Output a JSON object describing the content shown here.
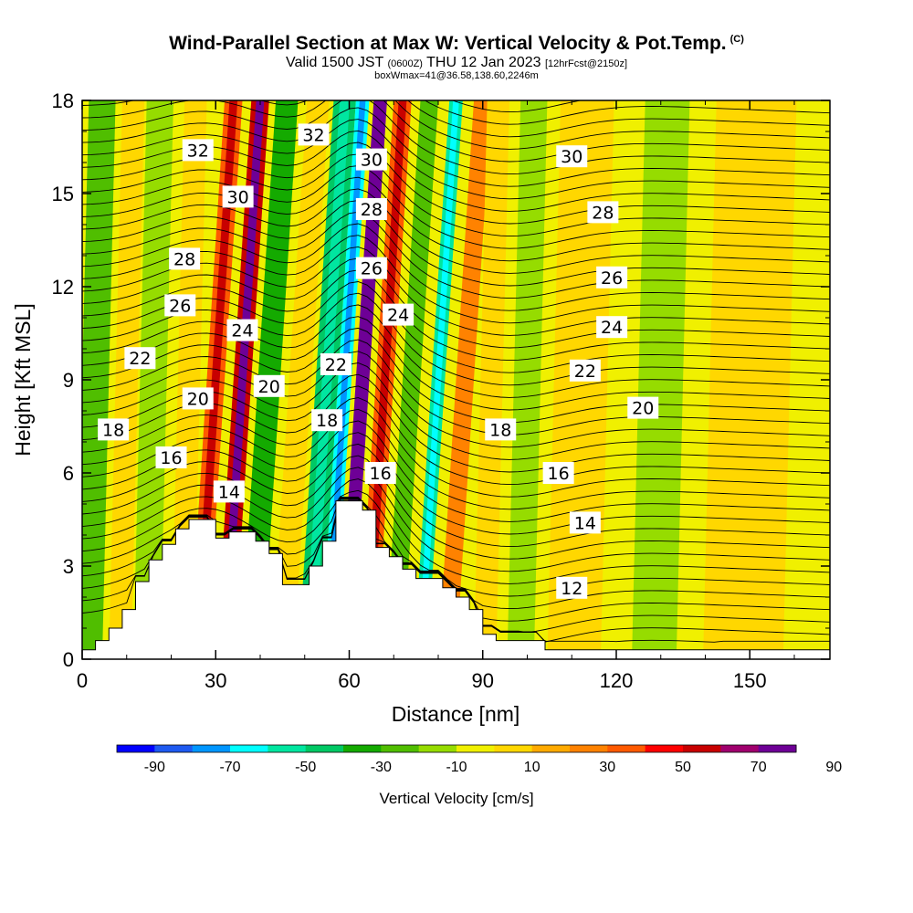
{
  "title": {
    "main": "Wind-Parallel Section at Max W: Vertical Velocity & Pot.Temp.",
    "copyright": "(C)",
    "valid_prefix": "Valid 1500 JST",
    "valid_zulu": "(0600Z)",
    "valid_date": "THU 12 Jan 2023",
    "forecast": "[12hrFcst@2150z]",
    "box_info": "boxWmax=41@36.58,138.60,2246m"
  },
  "chart_data": {
    "type": "heatmap",
    "xlabel": "Distance [nm]",
    "ylabel": "Height [Kft MSL]",
    "xlim": [
      0,
      168
    ],
    "ylim": [
      0,
      18
    ],
    "x_ticks": [
      0,
      30,
      60,
      90,
      120,
      150
    ],
    "y_ticks": [
      0,
      3,
      6,
      9,
      12,
      15,
      18
    ],
    "colorbar": {
      "label": "Vertical Velocity [cm/s]",
      "tick_labels": [
        "-90",
        "-70",
        "-50",
        "-30",
        "-10",
        "10",
        "30",
        "50",
        "70",
        "90"
      ],
      "colors": [
        "#0000ff",
        "#1e5af0",
        "#0096ff",
        "#00ffff",
        "#00e6a0",
        "#00c864",
        "#14aa00",
        "#50be00",
        "#96dc00",
        "#f0f000",
        "#ffd700",
        "#ffaa00",
        "#ff8200",
        "#ff5a00",
        "#ff0000",
        "#c80000",
        "#a0006e",
        "#6e0096"
      ]
    },
    "terrain": {
      "x": [
        0,
        3,
        6,
        9,
        12,
        15,
        18,
        21,
        24,
        27,
        30,
        33,
        36,
        39,
        42,
        45,
        48,
        51,
        54,
        57,
        60,
        63,
        66,
        69,
        72,
        75,
        78,
        81,
        84,
        87,
        90,
        93,
        96,
        99,
        102,
        104,
        168
      ],
      "height": [
        0.3,
        0.6,
        1.0,
        1.6,
        2.5,
        3.2,
        3.7,
        4.2,
        4.5,
        4.5,
        3.9,
        4.1,
        4.1,
        3.8,
        3.4,
        2.4,
        2.4,
        3.0,
        3.8,
        5.1,
        5.1,
        4.8,
        3.6,
        3.3,
        2.9,
        2.6,
        2.6,
        2.3,
        2.0,
        1.6,
        0.8,
        0.6,
        0.6,
        0.6,
        0.6,
        0.3,
        0.3
      ]
    },
    "vertical_velocity_bands": [
      {
        "center_x": 3,
        "width": 6,
        "value": -20
      },
      {
        "center_x": 10,
        "width": 5,
        "value": 10
      },
      {
        "center_x": 16,
        "width": 6,
        "value": -10
      },
      {
        "center_x": 24,
        "width": 5,
        "value": 10
      },
      {
        "center_x": 30,
        "width": 4,
        "value": 40
      },
      {
        "center_x": 36,
        "width": 4,
        "value": 60
      },
      {
        "center_x": 42,
        "width": 5,
        "value": -30
      },
      {
        "center_x": 49,
        "width": 5,
        "value": 10
      },
      {
        "center_x": 55,
        "width": 5,
        "value": -40
      },
      {
        "center_x": 59,
        "width": 3,
        "value": -60
      },
      {
        "center_x": 63,
        "width": 3,
        "value": 90
      },
      {
        "center_x": 68,
        "width": 4,
        "value": 40
      },
      {
        "center_x": 74,
        "width": 4,
        "value": -20
      },
      {
        "center_x": 80,
        "width": 3,
        "value": -50
      },
      {
        "center_x": 86,
        "width": 4,
        "value": 30
      },
      {
        "center_x": 92,
        "width": 5,
        "value": 10
      },
      {
        "center_x": 100,
        "width": 6,
        "value": -10
      },
      {
        "center_x": 112,
        "width": 12,
        "value": 10
      },
      {
        "center_x": 130,
        "width": 10,
        "value": -10
      },
      {
        "center_x": 150,
        "width": 18,
        "value": 10
      }
    ],
    "potential_temperature_labels": [
      {
        "value": "32",
        "x": 26,
        "y": 16.4
      },
      {
        "value": "32",
        "x": 52,
        "y": 16.9
      },
      {
        "value": "30",
        "x": 35,
        "y": 14.9
      },
      {
        "value": "30",
        "x": 65,
        "y": 16.1
      },
      {
        "value": "30",
        "x": 110,
        "y": 16.2
      },
      {
        "value": "28",
        "x": 23,
        "y": 12.9
      },
      {
        "value": "28",
        "x": 65,
        "y": 14.5
      },
      {
        "value": "28",
        "x": 117,
        "y": 14.4
      },
      {
        "value": "26",
        "x": 22,
        "y": 11.4
      },
      {
        "value": "26",
        "x": 65,
        "y": 12.6
      },
      {
        "value": "26",
        "x": 119,
        "y": 12.3
      },
      {
        "value": "24",
        "x": 36,
        "y": 10.6
      },
      {
        "value": "24",
        "x": 71,
        "y": 11.1
      },
      {
        "value": "24",
        "x": 119,
        "y": 10.7
      },
      {
        "value": "22",
        "x": 13,
        "y": 9.7
      },
      {
        "value": "22",
        "x": 57,
        "y": 9.5
      },
      {
        "value": "22",
        "x": 113,
        "y": 9.3
      },
      {
        "value": "20",
        "x": 26,
        "y": 8.4
      },
      {
        "value": "20",
        "x": 42,
        "y": 8.8
      },
      {
        "value": "20",
        "x": 126,
        "y": 8.1
      },
      {
        "value": "18",
        "x": 7,
        "y": 7.4
      },
      {
        "value": "18",
        "x": 55,
        "y": 7.7
      },
      {
        "value": "18",
        "x": 94,
        "y": 7.4
      },
      {
        "value": "16",
        "x": 20,
        "y": 6.5
      },
      {
        "value": "16",
        "x": 67,
        "y": 6.0
      },
      {
        "value": "16",
        "x": 107,
        "y": 6.0
      },
      {
        "value": "14",
        "x": 33,
        "y": 5.4
      },
      {
        "value": "14",
        "x": 113,
        "y": 4.4
      },
      {
        "value": "12",
        "x": 110,
        "y": 2.3
      }
    ]
  }
}
